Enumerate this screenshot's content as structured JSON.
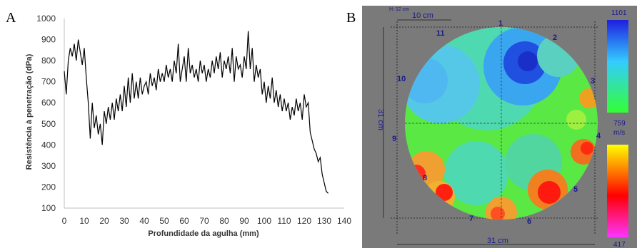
{
  "panels": {
    "a_label": "A",
    "b_label": "B"
  },
  "chart_data": [
    {
      "type": "line",
      "xlabel": "Profundidade  da agulha (mm)",
      "ylabel": "Resistência à penetração (dPa)",
      "xlim": [
        0,
        140
      ],
      "ylim": [
        100,
        1000
      ],
      "xticks": [
        "0",
        "10",
        "20",
        "30",
        "40",
        "50",
        "60",
        "70",
        "80",
        "90",
        "100",
        "110",
        "120",
        "130",
        "140"
      ],
      "yticks": [
        "100",
        "200",
        "300",
        "400",
        "500",
        "600",
        "700",
        "800",
        "900",
        "1000"
      ],
      "grid": false,
      "series": [
        {
          "x": [
            0,
            1,
            2,
            3,
            4,
            5,
            6,
            7,
            8,
            9,
            10,
            11,
            12,
            13,
            14,
            15,
            16,
            17,
            18,
            19,
            20,
            21,
            22,
            23,
            24,
            25,
            26,
            27,
            28,
            29,
            30,
            31,
            32,
            33,
            34,
            35,
            36,
            37,
            38,
            39,
            40,
            41,
            42,
            43,
            44,
            45,
            46,
            47,
            48,
            49,
            50,
            51,
            52,
            53,
            54,
            55,
            56,
            57,
            58,
            59,
            60,
            61,
            62,
            63,
            64,
            65,
            66,
            67,
            68,
            69,
            70,
            71,
            72,
            73,
            74,
            75,
            76,
            77,
            78,
            79,
            80,
            81,
            82,
            83,
            84,
            85,
            86,
            87,
            88,
            89,
            90,
            91,
            92,
            93,
            94,
            95,
            96,
            97,
            98,
            99,
            100,
            101,
            102,
            103,
            104,
            105,
            106,
            107,
            108,
            109,
            110,
            111,
            112,
            113,
            114,
            115,
            116,
            117,
            118,
            119,
            120,
            121,
            122,
            123,
            124,
            125,
            126,
            127,
            128,
            129,
            130,
            131,
            132
          ],
          "y": [
            750,
            640,
            800,
            860,
            820,
            880,
            800,
            900,
            840,
            780,
            860,
            720,
            600,
            430,
            600,
            480,
            540,
            450,
            500,
            400,
            560,
            500,
            580,
            520,
            600,
            520,
            620,
            560,
            640,
            560,
            680,
            580,
            720,
            600,
            740,
            620,
            700,
            620,
            720,
            640,
            680,
            700,
            640,
            740,
            680,
            720,
            660,
            760,
            700,
            740,
            700,
            780,
            720,
            760,
            700,
            800,
            740,
            880,
            700,
            760,
            820,
            700,
            860,
            740,
            780,
            720,
            760,
            700,
            800,
            740,
            780,
            700,
            760,
            720,
            800,
            740,
            820,
            760,
            840,
            720,
            800,
            760,
            820,
            740,
            860,
            700,
            820,
            760,
            780,
            720,
            820,
            760,
            940,
            760,
            860,
            700,
            780,
            720,
            760,
            640,
            700,
            600,
            680,
            620,
            720,
            600,
            660,
            580,
            640,
            560,
            620,
            560,
            600,
            520,
            580,
            540,
            620,
            560,
            600,
            520,
            640,
            580,
            600,
            460,
            420,
            380,
            360,
            320,
            340,
            260,
            220,
            180,
            170
          ]
        }
      ]
    },
    {
      "type": "heatmap",
      "subtype": "acoustic tomogram",
      "scale_max": "1101",
      "scale_mid": "759",
      "scale_unit": "m/s",
      "scale_min": "417",
      "scale_colors": [
        "#1f1fe0",
        "#33ccff",
        "#33ff33",
        "#ffff00",
        "#ff0000",
        "#ff33ff"
      ],
      "sensors": [
        "1",
        "2",
        "3",
        "4",
        "5",
        "6",
        "7",
        "8",
        "9",
        "10",
        "11"
      ],
      "dim_small": "H: 12 cm",
      "dim_top": "10 cm",
      "dim_side": "31 cm",
      "dim_bottom": "31 cm"
    }
  ]
}
